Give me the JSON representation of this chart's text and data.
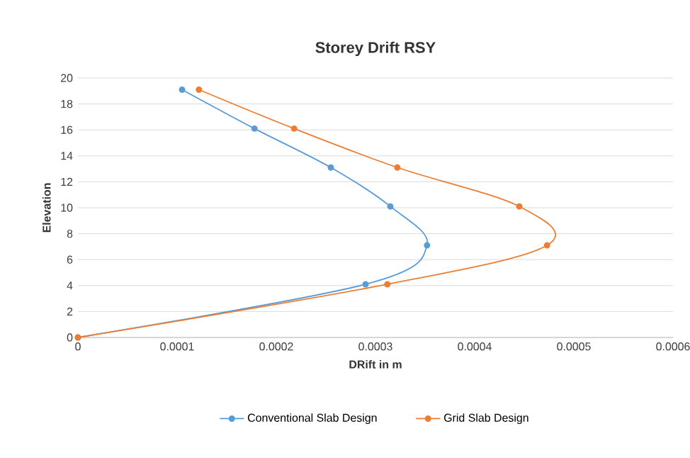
{
  "chart_data": {
    "type": "line",
    "title": "Storey Drift RSY",
    "xlabel": "DRift in m",
    "ylabel": "Elevation",
    "xlim": [
      0,
      0.0006
    ],
    "xticks": [
      0,
      0.0001,
      0.0002,
      0.0003,
      0.0004,
      0.0005,
      0.0006
    ],
    "ylim": [
      0,
      20
    ],
    "yticks": [
      0,
      2,
      4,
      6,
      8,
      10,
      12,
      14,
      16,
      18,
      20
    ],
    "grid": "y",
    "legend": "bottom",
    "marker": "circle",
    "series": [
      {
        "name": "Conventional Slab Design",
        "color": "#5b9bd5",
        "x": [
          0,
          0.00029,
          0.000352,
          0.000315,
          0.000255,
          0.000178,
          0.000105
        ],
        "values": [
          0,
          4.1,
          7.1,
          10.1,
          13.1,
          16.1,
          19.1
        ]
      },
      {
        "name": "Grid Slab Design",
        "color": "#ed7d31",
        "x": [
          0,
          0.000312,
          0.000473,
          0.000445,
          0.000322,
          0.000218,
          0.000122
        ],
        "values": [
          0,
          4.1,
          7.1,
          10.1,
          13.1,
          16.1,
          19.1
        ]
      }
    ]
  }
}
